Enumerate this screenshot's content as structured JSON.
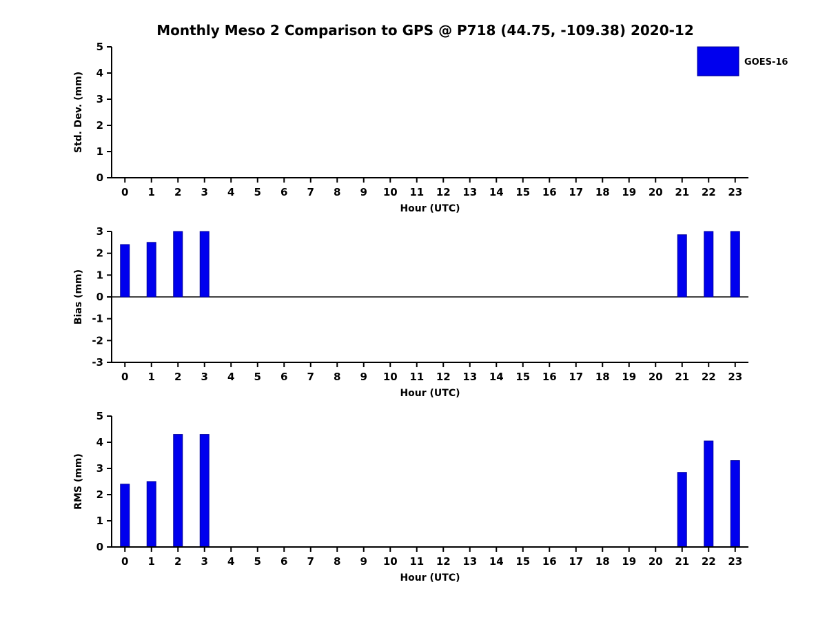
{
  "title": "Monthly Meso 2 Comparison to GPS @ P718 (44.75, -109.38) 2020-12",
  "legend": {
    "label": "GOES-16",
    "color": "#0000ee"
  },
  "colors": {
    "bar_fill": "#0000ee",
    "bar_edge": "#000099",
    "axis": "#000000"
  },
  "chart_data": [
    {
      "type": "bar",
      "name": "std-dev",
      "ylabel": "Std. Dev. (mm)",
      "xlabel": "Hour (UTC)",
      "ylim": [
        0,
        5
      ],
      "yticks": [
        0,
        1,
        2,
        3,
        4,
        5
      ],
      "categories": [
        0,
        1,
        2,
        3,
        4,
        5,
        6,
        7,
        8,
        9,
        10,
        11,
        12,
        13,
        14,
        15,
        16,
        17,
        18,
        19,
        20,
        21,
        22,
        23
      ],
      "values": [
        0,
        0,
        0,
        0,
        0,
        0,
        0,
        0,
        0,
        0,
        0,
        0,
        0,
        0,
        0,
        0,
        0,
        0,
        0,
        0,
        0,
        0,
        0,
        0
      ],
      "legend_position": "top-right",
      "grid": false
    },
    {
      "type": "bar",
      "name": "bias",
      "ylabel": "Bias (mm)",
      "xlabel": "Hour (UTC)",
      "ylim": [
        -3,
        3
      ],
      "yticks": [
        -3,
        -2,
        -1,
        0,
        1,
        2,
        3
      ],
      "categories": [
        0,
        1,
        2,
        3,
        4,
        5,
        6,
        7,
        8,
        9,
        10,
        11,
        12,
        13,
        14,
        15,
        16,
        17,
        18,
        19,
        20,
        21,
        22,
        23
      ],
      "values": [
        2.4,
        2.5,
        3.0,
        3.0,
        0,
        0,
        0,
        0,
        0,
        0,
        0,
        0,
        0,
        0,
        0,
        0,
        0,
        0,
        0,
        0,
        0,
        2.85,
        3.0,
        3.0
      ],
      "grid": false
    },
    {
      "type": "bar",
      "name": "rms",
      "ylabel": "RMS (mm)",
      "xlabel": "Hour (UTC)",
      "ylim": [
        0,
        5
      ],
      "yticks": [
        0,
        1,
        2,
        3,
        4,
        5
      ],
      "categories": [
        0,
        1,
        2,
        3,
        4,
        5,
        6,
        7,
        8,
        9,
        10,
        11,
        12,
        13,
        14,
        15,
        16,
        17,
        18,
        19,
        20,
        21,
        22,
        23
      ],
      "values": [
        2.4,
        2.5,
        4.3,
        4.3,
        0,
        0,
        0,
        0,
        0,
        0,
        0,
        0,
        0,
        0,
        0,
        0,
        0,
        0,
        0,
        0,
        0,
        2.85,
        4.05,
        3.3
      ],
      "grid": false
    }
  ]
}
